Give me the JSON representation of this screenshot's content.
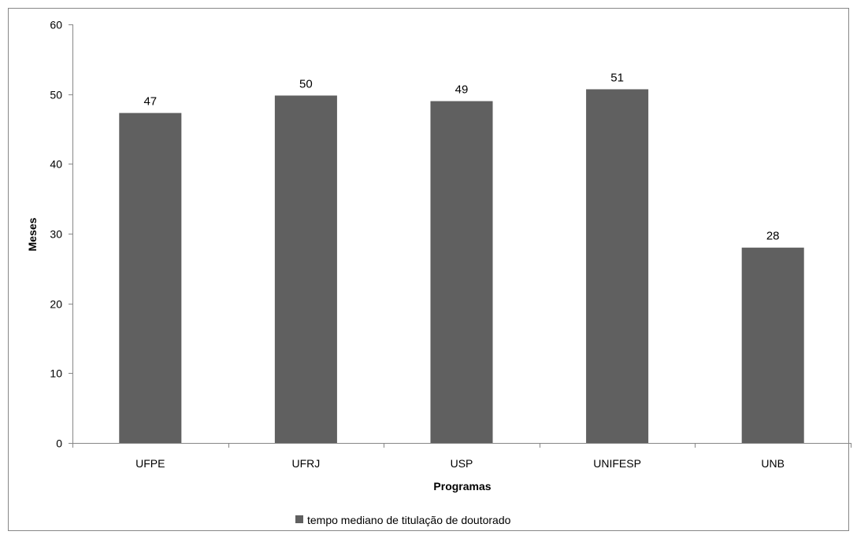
{
  "chart_data": {
    "type": "bar",
    "title": "",
    "xlabel": "Programas",
    "ylabel": "Meses",
    "categories": [
      "UFPE",
      "UFRJ",
      "USP",
      "UNIFESP",
      "UNB"
    ],
    "series": [
      {
        "name": "tempo mediano de titulação de doutorado",
        "values": [
          47.3,
          49.8,
          49.0,
          50.7,
          28.0
        ],
        "data_labels": [
          "47",
          "50",
          "49",
          "51",
          "28"
        ],
        "color": "#606060"
      }
    ],
    "ylim": [
      0,
      60
    ],
    "yticks": [
      "0",
      "10",
      "20",
      "30",
      "40",
      "50",
      "60"
    ],
    "grid": false,
    "legend_position": "bottom"
  }
}
